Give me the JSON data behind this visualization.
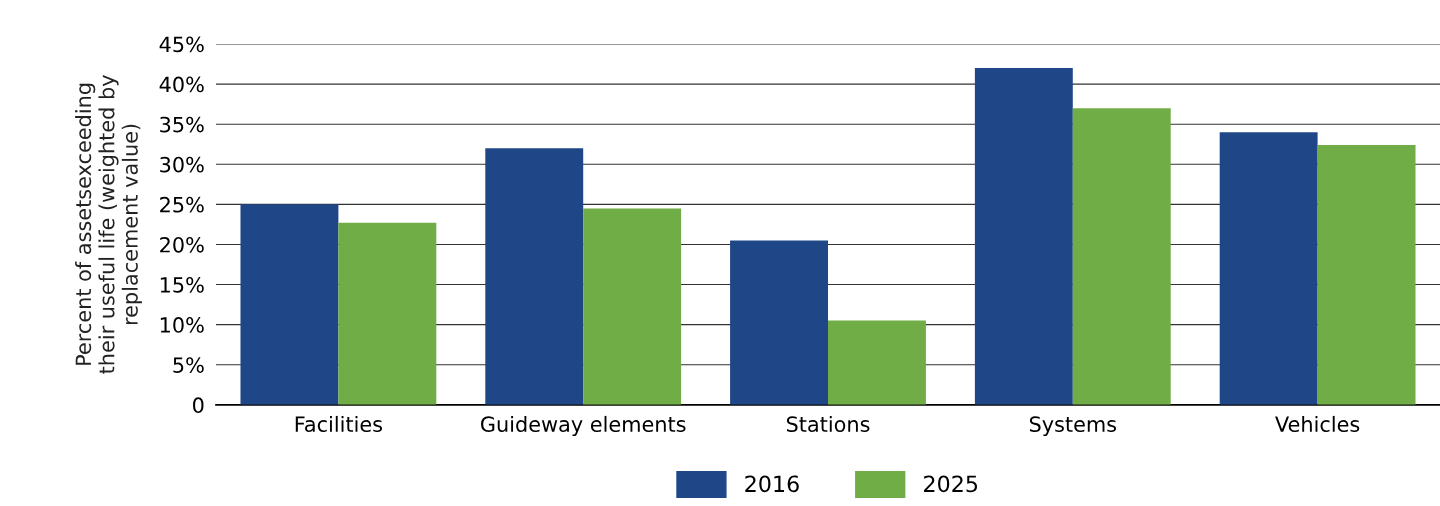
{
  "chart_data": {
    "type": "bar",
    "ylabel": "Percent of assetsexceeding\ntheir useful life (weighted by\nreplacement value)",
    "categories": [
      "Facilities",
      "Guideway elements",
      "Stations",
      "Systems",
      "Vehicles"
    ],
    "series": [
      {
        "name": "2016",
        "color": "#1f4788",
        "values": [
          25,
          32,
          20.5,
          42,
          34
        ]
      },
      {
        "name": "2025",
        "color": "#70ad47",
        "values": [
          22.7,
          24.5,
          10.5,
          37,
          32.4
        ]
      }
    ],
    "ylim": [
      0,
      45
    ],
    "yticks": [
      {
        "value": 0,
        "label": "0"
      },
      {
        "value": 5,
        "label": "5%"
      },
      {
        "value": 10,
        "label": "10%"
      },
      {
        "value": 15,
        "label": "15%"
      },
      {
        "value": 20,
        "label": "20%"
      },
      {
        "value": 25,
        "label": "25%"
      },
      {
        "value": 30,
        "label": "30%"
      },
      {
        "value": 35,
        "label": "35%"
      },
      {
        "value": 40,
        "label": "40%"
      },
      {
        "value": 45,
        "label": "45%"
      }
    ],
    "grid": "y",
    "legend": "bottom"
  }
}
